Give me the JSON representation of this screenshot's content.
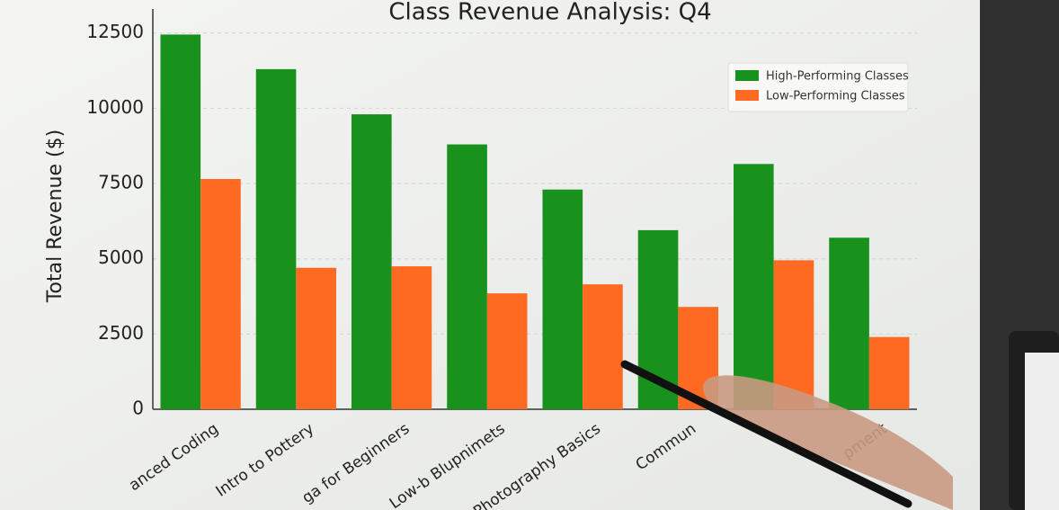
{
  "chart_data": {
    "type": "bar",
    "title": "Class Revenue Analysis: Q4",
    "y_label": "Total Revenue ($)",
    "categories": [
      "anced Coding",
      "Intro to Pottery",
      "ga for Beginners",
      "Low-b Blupnimets",
      "Photography Basics",
      "Commun",
      null,
      "pment"
    ],
    "series": [
      {
        "name": "High-Performing Classes",
        "color": "#18921c",
        "values": [
          12450,
          11300,
          9800,
          8800,
          7300,
          5950,
          8150,
          5700
        ]
      },
      {
        "name": "Low-Performing Classes",
        "color": "#ff6a22",
        "values": [
          7650,
          4700,
          4750,
          3850,
          4150,
          3400,
          4950,
          2400
        ]
      }
    ],
    "ylim": [
      0,
      13000
    ],
    "yticks": [
      0,
      2500,
      5000,
      7500,
      10000,
      12500
    ],
    "grid": true,
    "legend": "upper right"
  }
}
